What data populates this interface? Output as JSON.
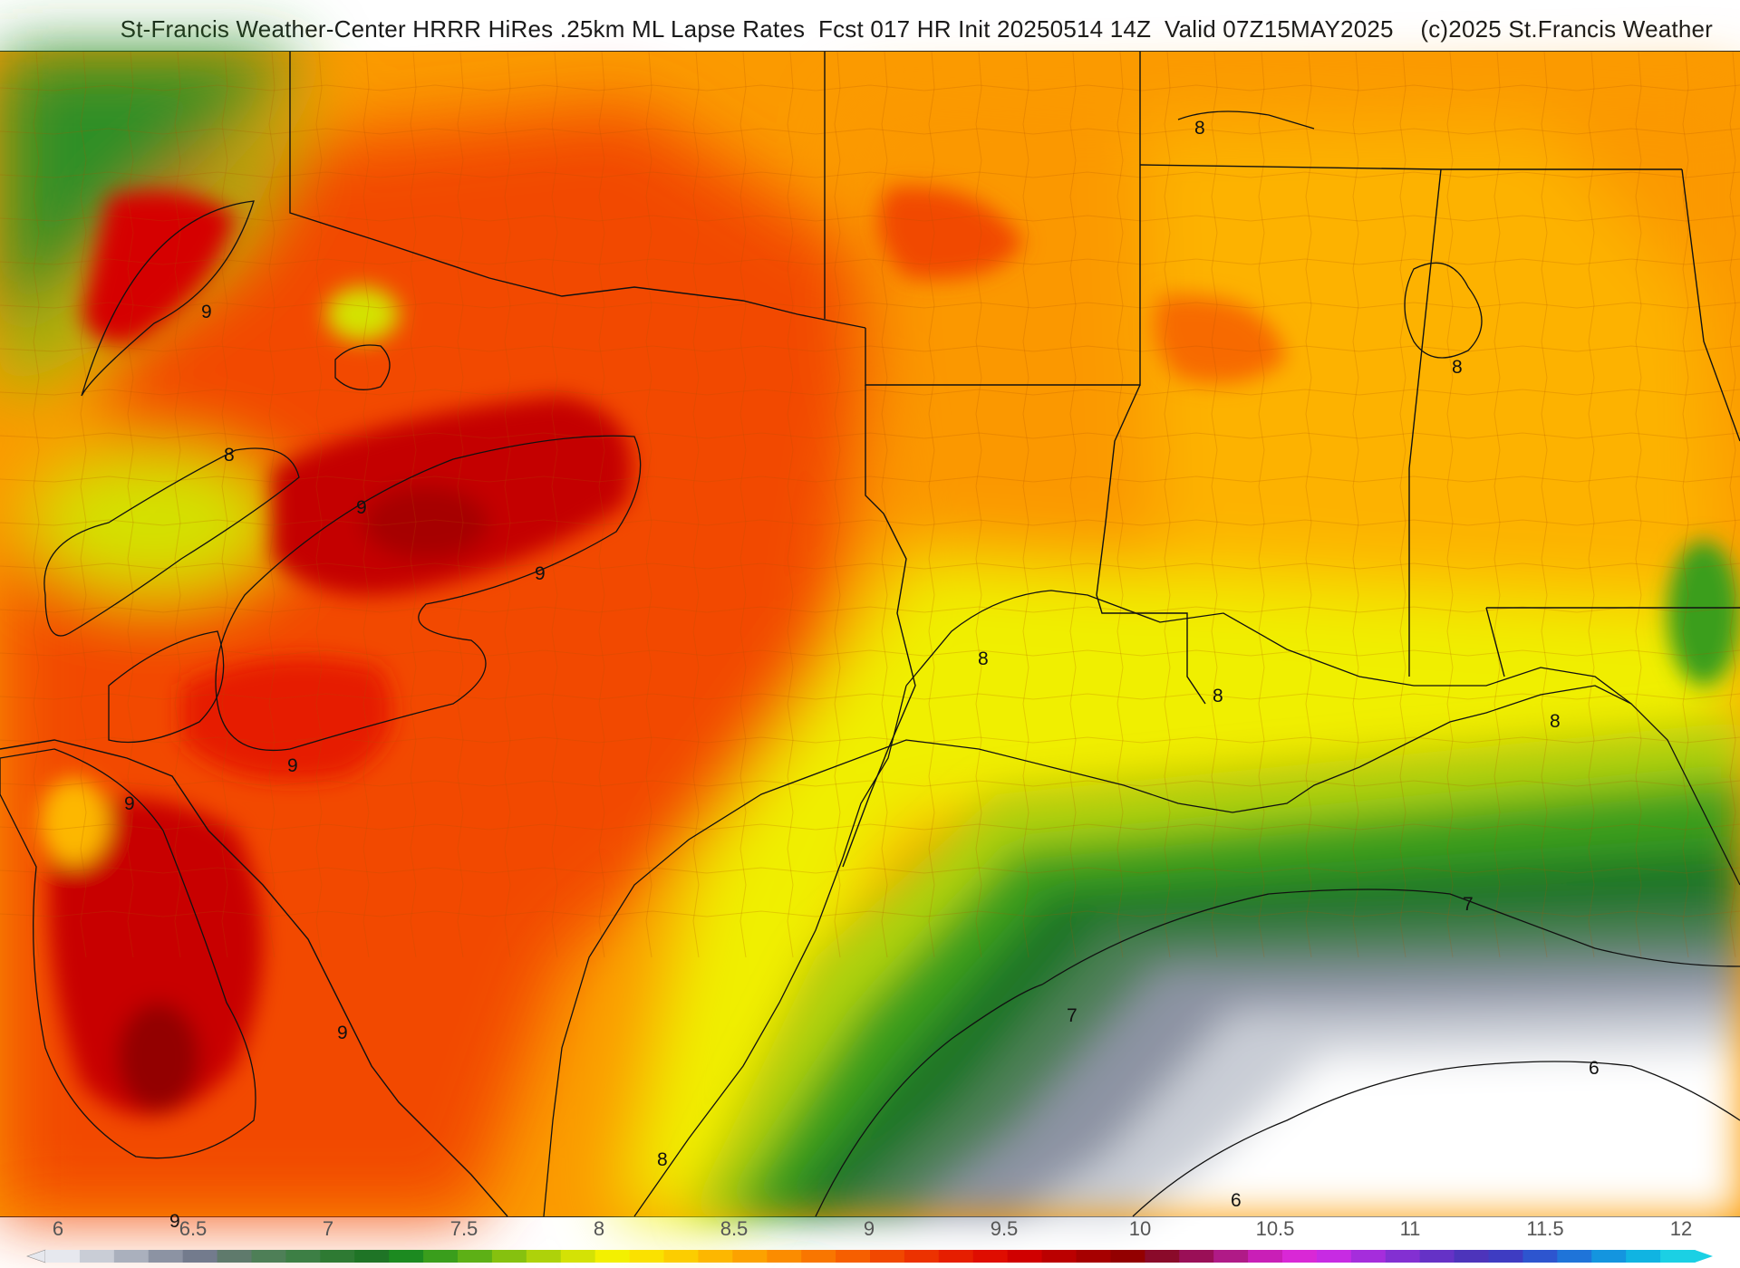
{
  "header": {
    "title": "St-Francis Weather-Center HRRR HiRes .25km ML Lapse Rates  Fcst 017 HR Init 20250514 14Z  Valid 07Z15MAY2025    (c)2025 St.Francis Weather"
  },
  "map": {
    "contour_labels": [
      {
        "id": "c1",
        "text": "8"
      },
      {
        "id": "c2",
        "text": "9"
      },
      {
        "id": "c3",
        "text": "8"
      },
      {
        "id": "c4",
        "text": "9"
      },
      {
        "id": "c5",
        "text": "9"
      },
      {
        "id": "c6",
        "text": "9"
      },
      {
        "id": "c7",
        "text": "9"
      },
      {
        "id": "c8",
        "text": "9"
      },
      {
        "id": "c9",
        "text": "9"
      },
      {
        "id": "c10",
        "text": "8"
      },
      {
        "id": "c11",
        "text": "8"
      },
      {
        "id": "c12",
        "text": "8"
      },
      {
        "id": "c13",
        "text": "8"
      },
      {
        "id": "c14",
        "text": "8"
      },
      {
        "id": "c15",
        "text": "7"
      },
      {
        "id": "c16",
        "text": "7"
      },
      {
        "id": "c17",
        "text": "6"
      },
      {
        "id": "c18",
        "text": "6"
      }
    ]
  },
  "colorbar": {
    "ticks": [
      "6",
      "6.5",
      "7",
      "7.5",
      "8",
      "8.5",
      "9",
      "9.5",
      "10",
      "10.5",
      "11",
      "11.5",
      "12"
    ],
    "colors": [
      "#e6e8ee",
      "#c9cdd6",
      "#aab0bd",
      "#8c93a3",
      "#737b8d",
      "#5f7a6c",
      "#4e7f57",
      "#3d7f45",
      "#2e7a33",
      "#1f7426",
      "#1c8a20",
      "#3a9e1c",
      "#5db016",
      "#86c10f",
      "#aed20a",
      "#d4e205",
      "#f3f000",
      "#fae100",
      "#fccd00",
      "#fdb700",
      "#fca200",
      "#fb8c00",
      "#f97600",
      "#f65f00",
      "#f14800",
      "#ec3200",
      "#e61e00",
      "#df0d00",
      "#d00000",
      "#bb0000",
      "#a60000",
      "#930000",
      "#8a0a2a",
      "#9a0f57",
      "#b01a87",
      "#c91fb7",
      "#d928d6",
      "#c72be3",
      "#a52ddc",
      "#8330d2",
      "#6532c6",
      "#4d34bb",
      "#3e3cc2",
      "#2d55cf",
      "#1f74d9",
      "#1495df",
      "#10b4e2",
      "#1bd0e4"
    ]
  }
}
